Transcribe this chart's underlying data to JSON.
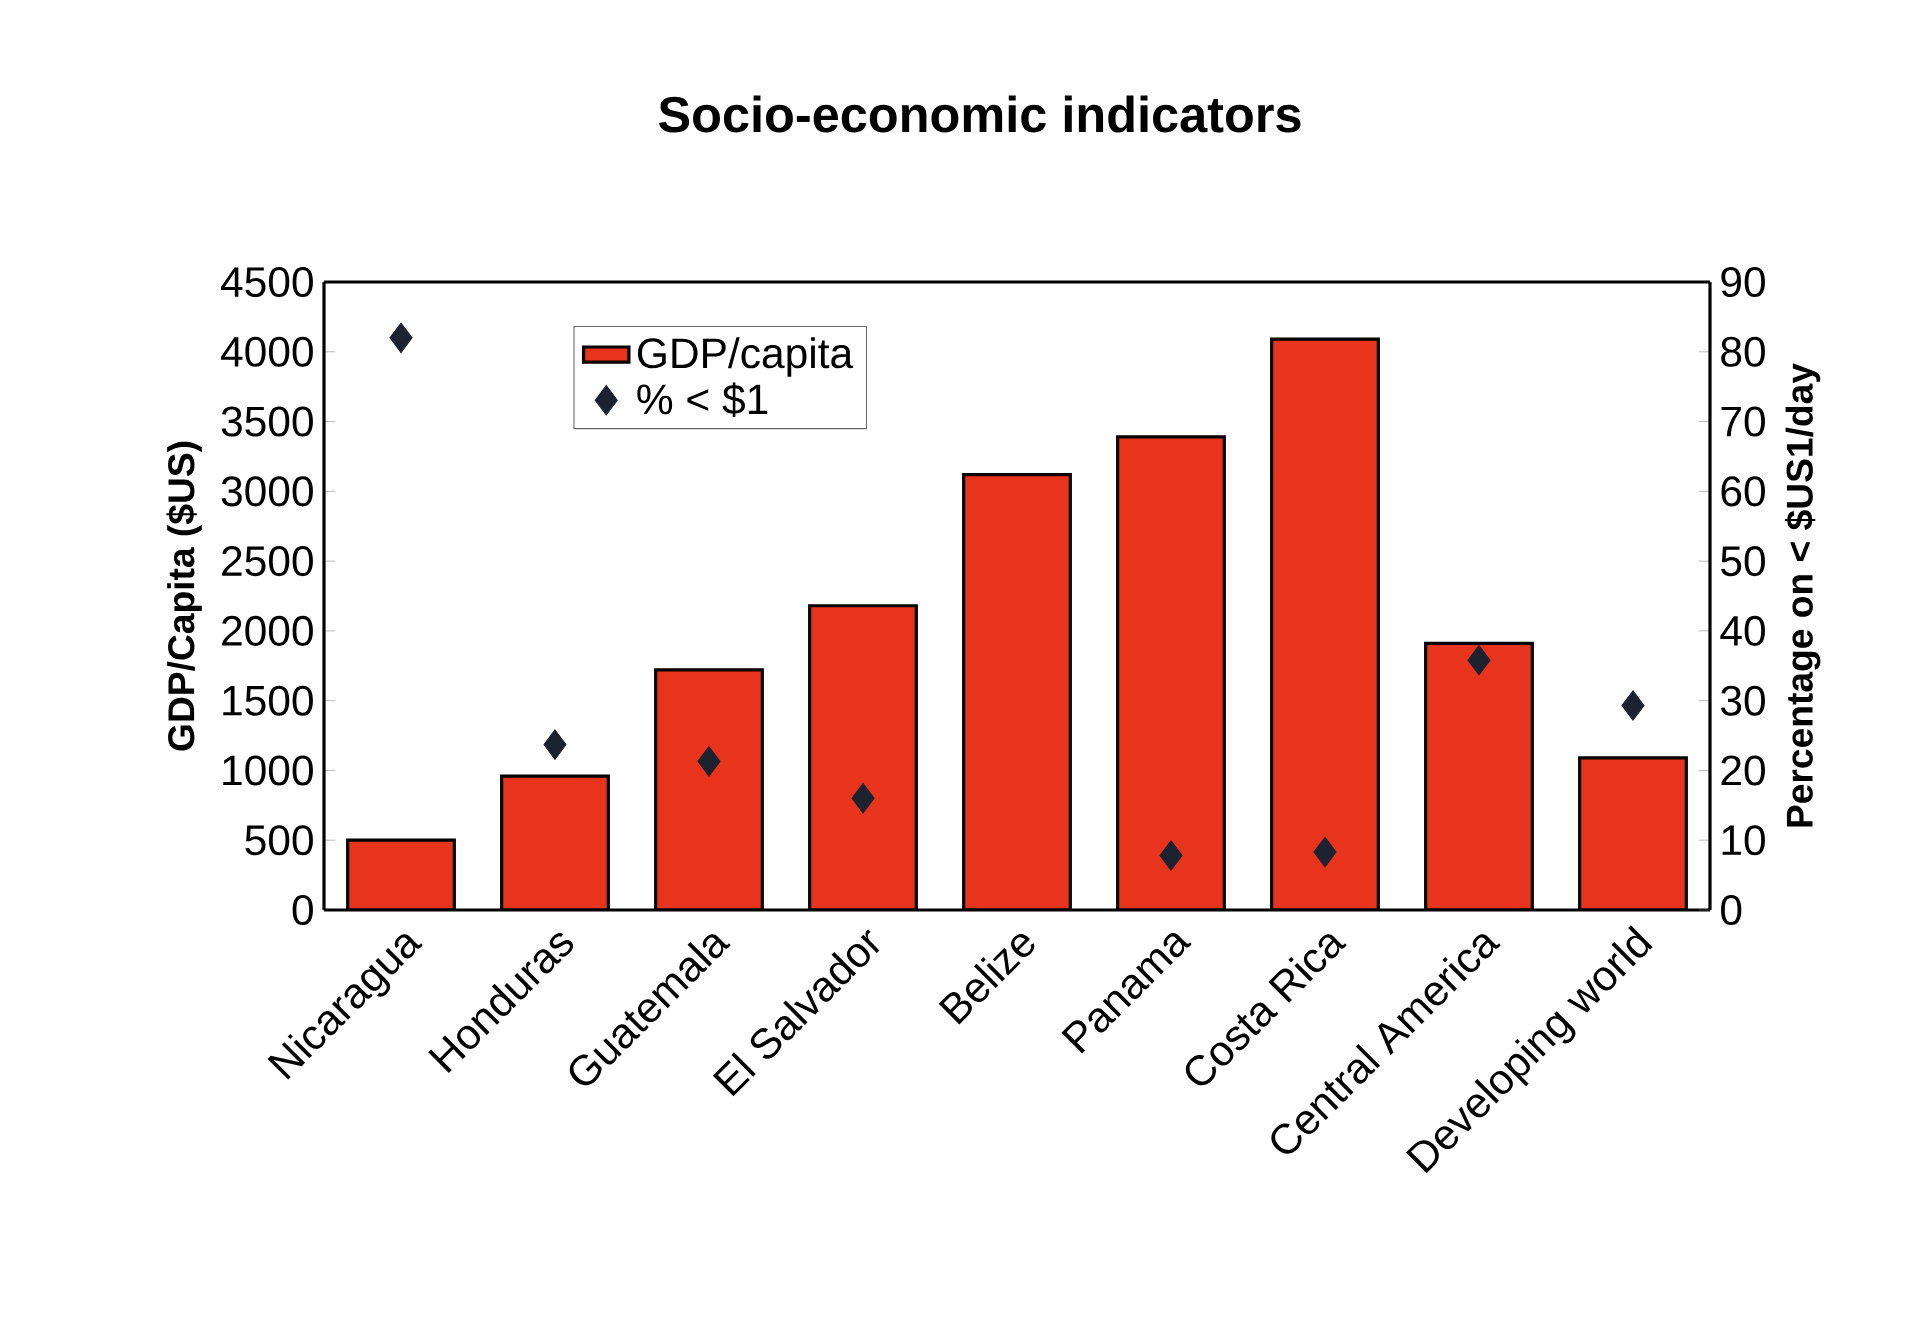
{
  "chart_data": {
    "type": "bar",
    "title": "Socio-economic indicators",
    "ylabel": "GDP/Capita ($US)",
    "y2label": "Percentage on < $US1/day",
    "categories": [
      "Nicaragua",
      "Honduras",
      "Guatemala",
      "El Salvador",
      "Belize",
      "Panama",
      "Costa Rica",
      "Central America",
      "Developing world"
    ],
    "series": [
      {
        "name": "GDP/capita",
        "color": "#e8341c",
        "values": [
          500,
          960,
          1720,
          2180,
          3120,
          3390,
          4090,
          1910,
          1090
        ]
      },
      {
        "name": "% < $1",
        "type": "scatter",
        "axis": "y2",
        "marker": "diamond",
        "color": "#1c2230",
        "values": [
          82,
          23.7,
          21.3,
          16,
          null,
          7.8,
          8.3,
          35.8,
          29.3
        ]
      }
    ],
    "ylim": [
      0,
      4500
    ],
    "yticks": [
      0,
      500,
      1000,
      1500,
      2000,
      2500,
      3000,
      3500,
      4000,
      4500
    ],
    "y2lim": [
      0,
      90
    ],
    "y2ticks": [
      0,
      10,
      20,
      30,
      40,
      50,
      60,
      70,
      80,
      90
    ],
    "grid": false,
    "legend": "top left"
  }
}
